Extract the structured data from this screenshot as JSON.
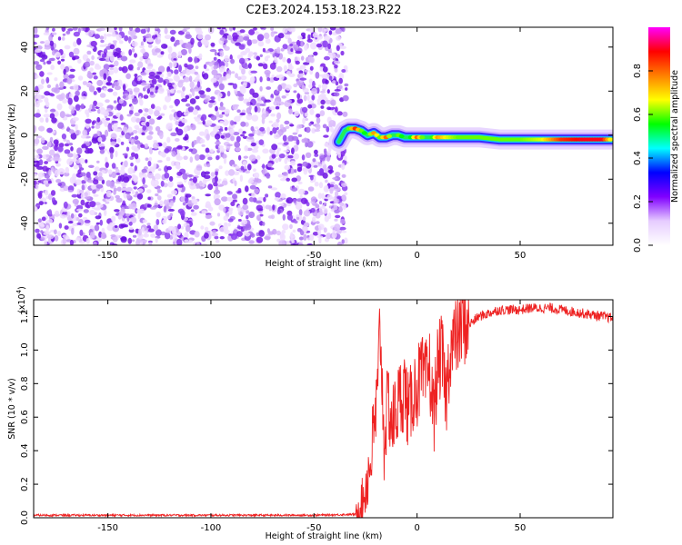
{
  "title": "C2E3.2024.153.18.23.R22",
  "chart_data": [
    {
      "type": "heatmap",
      "xlabel": "Height of straight line (km)",
      "ylabel": "Frequency (Hz)",
      "xlim": [
        -186,
        95
      ],
      "ylim": [
        -50,
        49
      ],
      "xticks": [
        "-150",
        "-100",
        "-50",
        "0",
        "50"
      ],
      "xtick_values": [
        -150,
        -100,
        -50,
        0,
        50
      ],
      "yticks": [
        "-40",
        "-20",
        "0",
        "20",
        "40"
      ],
      "ytick_values": [
        -40,
        -20,
        0,
        20,
        40
      ],
      "noise_region_x": [
        -186,
        -36
      ],
      "signal_track": {
        "x": [
          -38,
          -35,
          -33,
          -30,
          -27,
          -24,
          -21,
          -18,
          -15,
          -12,
          -9,
          -6,
          -3,
          0,
          5,
          10,
          15,
          20,
          30,
          40,
          50,
          60,
          70,
          80,
          90,
          95
        ],
        "freq": [
          -3,
          2,
          3,
          3,
          2,
          0,
          1,
          -1,
          -1,
          0,
          0,
          -1,
          -1,
          -1,
          -1,
          -1,
          -1,
          -1,
          -1,
          -2,
          -2,
          -2,
          -2,
          -2,
          -2,
          -2
        ],
        "amplitude": [
          0.2,
          0.3,
          0.6,
          0.85,
          0.6,
          0.5,
          0.75,
          0.6,
          0.8,
          0.45,
          0.6,
          0.5,
          0.55,
          0.8,
          0.4,
          0.75,
          0.65,
          0.6,
          0.6,
          0.6,
          0.6,
          0.65,
          0.85,
          0.9,
          0.9,
          0.6
        ]
      }
    },
    {
      "type": "line",
      "xlabel": "Height of straight line (km)",
      "ylabel": "SNR (10 * v/v)",
      "multiplier": "(x10",
      "multiplier_exp": "4",
      "multiplier_close": ")",
      "xlim": [
        -186,
        95
      ],
      "ylim": [
        0,
        1.3
      ],
      "xticks": [
        "-150",
        "-100",
        "-50",
        "0",
        "50"
      ],
      "xtick_values": [
        -150,
        -100,
        -50,
        0,
        50
      ],
      "yticks": [
        "0.0",
        "0.2",
        "0.4",
        "0.6",
        "0.8",
        "1.0",
        "1.2"
      ],
      "ytick_values": [
        0,
        0.2,
        0.4,
        0.6,
        0.8,
        1.0,
        1.2
      ],
      "series": [
        {
          "color": "#ee2222",
          "x": [
            -186,
            -150,
            -100,
            -50,
            -30,
            -26,
            -23,
            -21,
            -19,
            -18,
            -16,
            -14,
            -12,
            -10,
            -8,
            -6,
            -4,
            -2,
            0,
            2,
            4,
            6,
            8,
            10,
            12,
            14,
            16,
            18,
            20,
            22,
            25,
            30,
            35,
            40,
            45,
            50,
            55,
            60,
            65,
            70,
            75,
            80,
            85,
            90,
            95
          ],
          "y": [
            0.015,
            0.015,
            0.015,
            0.015,
            0.02,
            0.12,
            0.3,
            0.5,
            0.75,
            1.18,
            0.45,
            0.7,
            0.55,
            0.65,
            0.72,
            0.78,
            0.6,
            0.75,
            0.78,
            0.85,
            0.8,
            0.9,
            0.6,
            0.9,
            0.98,
            0.7,
            1.0,
            1.05,
            1.1,
            1.15,
            1.15,
            1.2,
            1.22,
            1.24,
            1.24,
            1.24,
            1.25,
            1.25,
            1.25,
            1.24,
            1.23,
            1.22,
            1.21,
            1.2,
            1.19
          ]
        }
      ]
    }
  ],
  "colorbar": {
    "label": "Normalized spectral amplitude",
    "ticks": [
      "0.0",
      "0.2",
      "0.4",
      "0.6",
      "0.8"
    ],
    "tick_values": [
      0,
      0.2,
      0.4,
      0.6,
      0.8
    ],
    "range": [
      0,
      1
    ],
    "colors": [
      "#ffffff",
      "#e6ccff",
      "#8000ff",
      "#0000ff",
      "#00ffff",
      "#00ff00",
      "#ffff00",
      "#ff8000",
      "#ff0000",
      "#ff00ff"
    ]
  }
}
